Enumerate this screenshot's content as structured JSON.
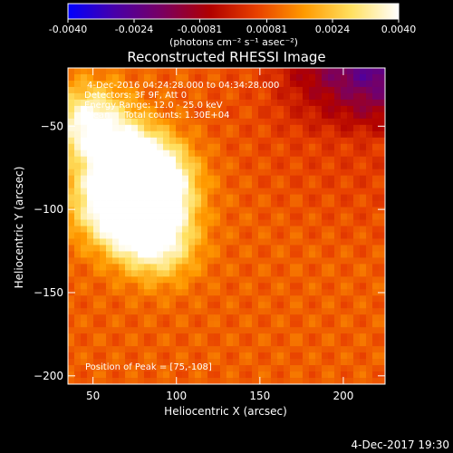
{
  "chart_data": {
    "type": "heatmap",
    "title": "Reconstructed RHESSI Image",
    "xlabel": "Heliocentric X (arcsec)",
    "ylabel": "Heliocentric Y (arcsec)",
    "xlim": [
      35,
      225
    ],
    "ylim": [
      -205,
      -15
    ],
    "x_ticks": [
      50,
      100,
      150,
      200
    ],
    "y_ticks": [
      -50,
      -100,
      -150,
      -200
    ],
    "colorbar": {
      "min": -0.004,
      "max": 0.004,
      "ticks": [
        "-0.0040",
        "-0.0024",
        "-0.00081",
        "0.00081",
        "0.0024",
        "0.0040"
      ],
      "tick_values": [
        -0.004,
        -0.0024,
        -0.00081,
        0.00081,
        0.0024,
        0.004
      ],
      "unit_label": "(photons cm⁻² s⁻¹ asec⁻²)",
      "colormap": [
        "#0000ff",
        "#4800a8",
        "#7a0060",
        "#b00000",
        "#e84000",
        "#ff9a00",
        "#ffe060",
        "#ffffff"
      ]
    },
    "annotations": [
      "4-Dec-2016 04:24:28.000 to 04:34:28.000",
      "Detectors: 3F 9F, Att 0",
      "Energy Range: 12.0 - 25.0 keV",
      "Clean     Total counts: 1.30E+04"
    ],
    "peak_label": "Position of Peak = [75,-108]",
    "peak_position": [
      75,
      -108
    ],
    "sources": [
      {
        "x": 88,
        "y": -85,
        "intensity": 1.0
      },
      {
        "x": 72,
        "y": -72,
        "intensity": 0.95
      },
      {
        "x": 75,
        "y": -105,
        "intensity": 0.9
      },
      {
        "x": 48,
        "y": -48,
        "intensity": 0.85
      },
      {
        "x": 90,
        "y": -120,
        "intensity": 0.65
      },
      {
        "x": 55,
        "y": -95,
        "intensity": 0.55
      }
    ]
  },
  "footer": {
    "timestamp": "4-Dec-2017 19:30"
  }
}
